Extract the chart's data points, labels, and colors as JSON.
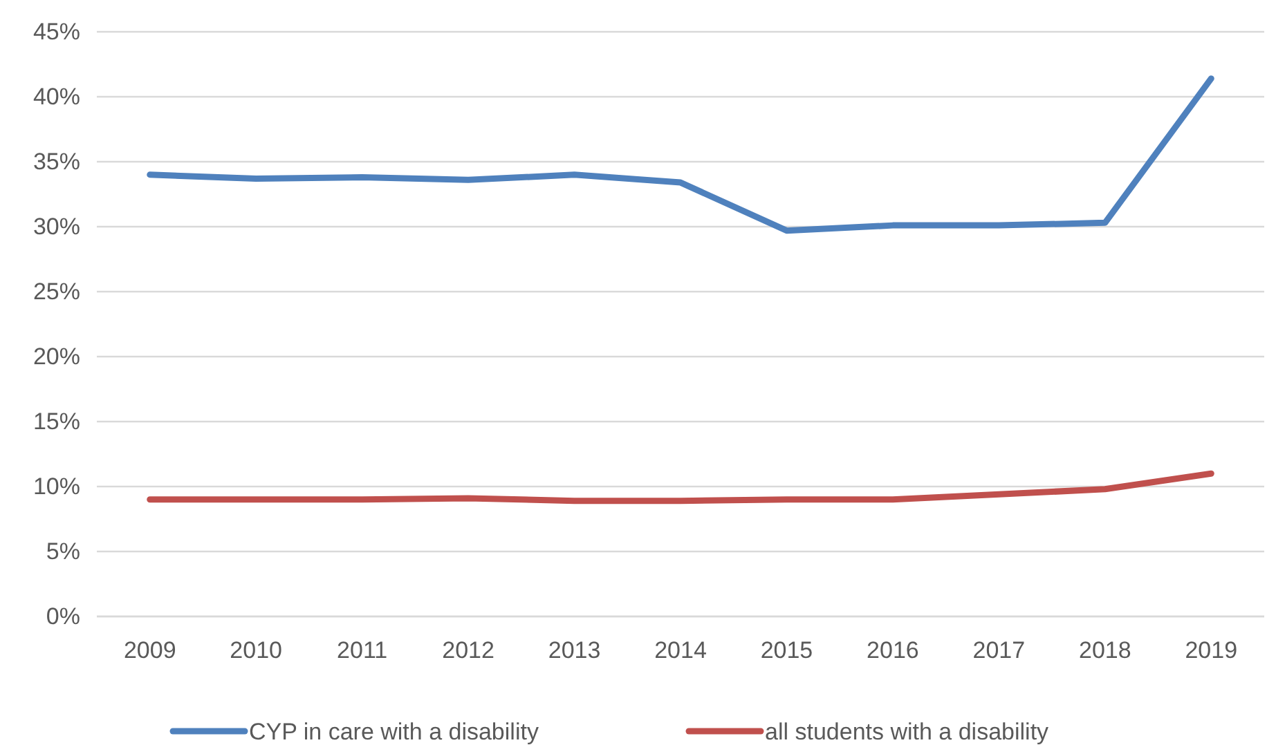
{
  "chart_data": {
    "type": "line",
    "categories": [
      "2009",
      "2010",
      "2011",
      "2012",
      "2013",
      "2014",
      "2015",
      "2016",
      "2017",
      "2018",
      "2019"
    ],
    "series": [
      {
        "name": "CYP in care with a disability",
        "color": "#4f81bd",
        "values": [
          34.0,
          33.7,
          33.8,
          33.6,
          34.0,
          33.4,
          29.7,
          30.1,
          30.1,
          30.3,
          41.4
        ]
      },
      {
        "name": "all students with a disability",
        "color": "#c0504d",
        "values": [
          9.0,
          9.0,
          9.0,
          9.1,
          8.9,
          8.9,
          9.0,
          9.0,
          9.4,
          9.8,
          11.0
        ]
      }
    ],
    "ylim": [
      0,
      45
    ],
    "yticks": [
      {
        "value": 0,
        "label": "0%"
      },
      {
        "value": 5,
        "label": "5%"
      },
      {
        "value": 10,
        "label": "10%"
      },
      {
        "value": 15,
        "label": "15%"
      },
      {
        "value": 20,
        "label": "20%"
      },
      {
        "value": 25,
        "label": "25%"
      },
      {
        "value": 30,
        "label": "30%"
      },
      {
        "value": 35,
        "label": "35%"
      },
      {
        "value": 40,
        "label": "40%"
      },
      {
        "value": 45,
        "label": "45%"
      }
    ],
    "grid": "y",
    "legend": "bottom",
    "marker": "none",
    "line_style": "solid"
  }
}
